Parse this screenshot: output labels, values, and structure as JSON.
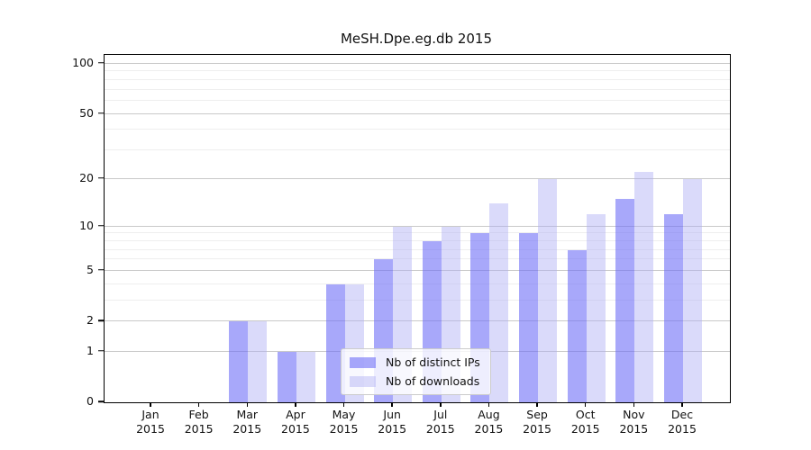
{
  "title": "MeSH.Dpe.eg.db 2015",
  "chart_data": {
    "type": "bar",
    "title": "MeSH.Dpe.eg.db 2015",
    "categories": [
      "Jan 2015",
      "Feb 2015",
      "Mar 2015",
      "Apr 2015",
      "May 2015",
      "Jun 2015",
      "Jul 2015",
      "Aug 2015",
      "Sep 2015",
      "Oct 2015",
      "Nov 2015",
      "Dec 2015"
    ],
    "series": [
      {
        "name": "Nb of distinct IPs",
        "values": [
          0,
          0,
          2,
          1,
          4,
          6,
          8,
          9,
          9,
          7,
          15,
          12
        ],
        "color": "rgba(110,110,247,0.6)",
        "solid_color": "#a8a8fa"
      },
      {
        "name": "Nb of downloads",
        "values": [
          0,
          0,
          2,
          1,
          4,
          10,
          10,
          14,
          20,
          12,
          22,
          20
        ],
        "color": "rgba(173,173,244,0.45)",
        "solid_color": "#dadafa"
      }
    ],
    "xlabel": "",
    "ylabel": "",
    "y_scale": "log1p",
    "y_ticks": [
      0,
      1,
      2,
      5,
      10,
      20,
      50,
      100
    ],
    "y_minor_ticks": [
      3,
      4,
      6,
      7,
      8,
      9,
      30,
      40,
      60,
      70,
      80,
      90
    ],
    "ylim": [
      0,
      113
    ],
    "grid": true,
    "legend_position": "lower-center-inside"
  },
  "colors": {
    "major_grid": "#c9c9c9",
    "minor_grid": "#eeeeee",
    "spine": "#000000",
    "background": "#ffffff",
    "text": "#111111"
  }
}
